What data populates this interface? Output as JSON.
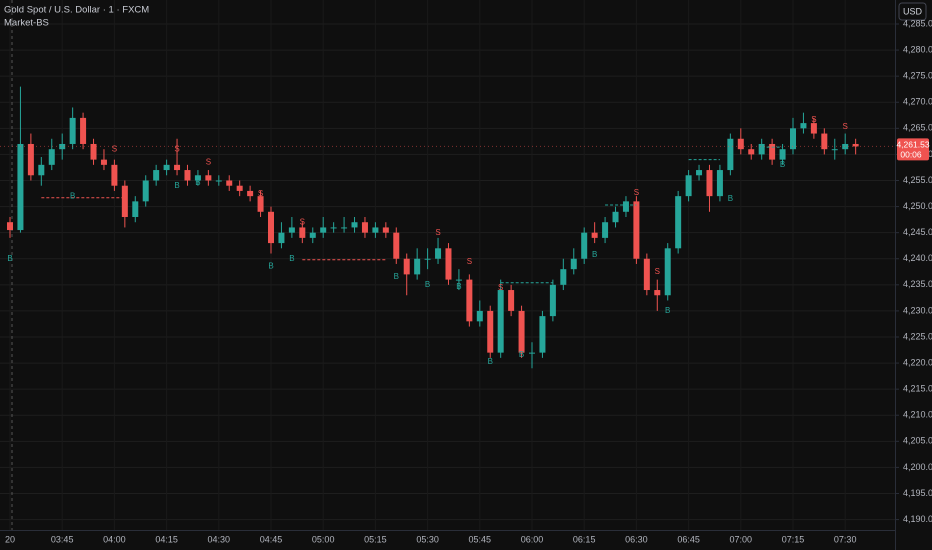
{
  "chart_data": {
    "type": "candlestick",
    "title": "Gold Spot / U.S. Dollar · 1 · FXCM",
    "indicator": "Market-BS",
    "currency": "USD",
    "countdown": "00:06",
    "last_price": {
      "value": 4261.53,
      "label": "4,261.53"
    },
    "up_color": "#26a69a",
    "down_color": "#ef5350",
    "grid": true,
    "ylim": [
      4188,
      4289.6
    ],
    "yticks": [
      {
        "value": 4190,
        "label": "4,190.00"
      },
      {
        "value": 4195,
        "label": "4,195.00"
      },
      {
        "value": 4200,
        "label": "4,200.00"
      },
      {
        "value": 4205,
        "label": "4,205.00"
      },
      {
        "value": 4210,
        "label": "4,210.00"
      },
      {
        "value": 4215,
        "label": "4,215.00"
      },
      {
        "value": 4220,
        "label": "4,220.00"
      },
      {
        "value": 4225,
        "label": "4,225.00"
      },
      {
        "value": 4230,
        "label": "4,230.00"
      },
      {
        "value": 4235,
        "label": "4,235.00"
      },
      {
        "value": 4240,
        "label": "4,240.00"
      },
      {
        "value": 4245,
        "label": "4,245.00"
      },
      {
        "value": 4250,
        "label": "4,250.00"
      },
      {
        "value": 4255,
        "label": "4,255.00"
      },
      {
        "value": 4260,
        "label": "4,260.00"
      },
      {
        "value": 4265,
        "label": "4,265.00"
      },
      {
        "value": 4270,
        "label": "4,270.00"
      },
      {
        "value": 4275,
        "label": "4,275.00"
      },
      {
        "value": 4280,
        "label": "4,280.00"
      },
      {
        "value": 4285,
        "label": "4,285.00"
      }
    ],
    "categories": [
      "20",
      null,
      null,
      null,
      null,
      "03:45",
      null,
      null,
      null,
      null,
      "04:00",
      null,
      null,
      null,
      null,
      "04:15",
      null,
      null,
      null,
      null,
      "04:30",
      null,
      null,
      null,
      null,
      "04:45",
      null,
      null,
      null,
      null,
      "05:00",
      null,
      null,
      null,
      null,
      "05:15",
      null,
      null,
      null,
      null,
      "05:30",
      null,
      null,
      null,
      null,
      "05:45",
      null,
      null,
      null,
      null,
      "06:00",
      null,
      null,
      null,
      null,
      "06:15",
      null,
      null,
      null,
      null,
      "06:30",
      null,
      null,
      null,
      null,
      "06:45",
      null,
      null,
      null,
      null,
      "07:00",
      null,
      null,
      null,
      null,
      "07:15",
      null,
      null,
      null,
      null,
      "07:30",
      null
    ],
    "open": [
      4247,
      4245.5,
      4262,
      4256,
      4258,
      4261,
      4262,
      4267,
      4262,
      4259,
      4258,
      4254,
      4248,
      4251,
      4255,
      4257,
      4258,
      4257,
      4255,
      4256,
      4255,
      4255,
      4254,
      4253,
      4252,
      4249,
      4243,
      4245,
      4246,
      4244,
      4245,
      4246,
      4246,
      4246,
      4247,
      4245,
      4246,
      4245,
      4240,
      4237,
      4240,
      4240,
      4242,
      4236,
      4236,
      4228,
      4230,
      4222,
      4234,
      4230,
      4222,
      4222,
      4229,
      4235,
      4238,
      4240,
      4245,
      4244,
      4247,
      4249,
      4251,
      4240,
      4234,
      4233,
      4242,
      4252,
      4256,
      4257,
      4252,
      4257,
      4263,
      4261,
      4260,
      4262,
      4259,
      4261,
      4265,
      4266,
      4264,
      4261,
      4261,
      4262
    ],
    "high": [
      4248,
      4273,
      4264,
      4259.5,
      4263,
      4264,
      4269,
      4268,
      4263,
      4261,
      4259,
      4255,
      4252,
      4256,
      4258,
      4259,
      4263,
      4258,
      4257,
      4257,
      4256,
      4256,
      4255,
      4254,
      4253,
      4250,
      4247,
      4248,
      4247,
      4246,
      4248,
      4247,
      4248,
      4248,
      4248,
      4247,
      4247,
      4246,
      4241,
      4242,
      4242,
      4244,
      4243,
      4238,
      4237,
      4232,
      4231,
      4236,
      4235,
      4231,
      4224,
      4230,
      4236,
      4240,
      4242,
      4246,
      4247,
      4248,
      4250,
      4252,
      4252,
      4241,
      4236,
      4243,
      4253,
      4257,
      4258,
      4258,
      4258,
      4264,
      4265,
      4262,
      4263,
      4263,
      4262,
      4267,
      4268,
      4267,
      4265,
      4263,
      4264,
      4263
    ],
    "low": [
      4244,
      4245,
      4255,
      4254,
      4257,
      4259,
      4261,
      4261,
      4258,
      4257,
      4253,
      4246,
      4247,
      4250,
      4254,
      4256,
      4256,
      4254,
      4254,
      4254,
      4254,
      4253,
      4252,
      4251,
      4248,
      4241,
      4242,
      4244,
      4243,
      4243,
      4244,
      4245,
      4245,
      4245,
      4244,
      4244,
      4244,
      4239,
      4233,
      4236,
      4238,
      4239,
      4235,
      4234,
      4227,
      4227,
      4221,
      4221,
      4229,
      4221,
      4219,
      4221,
      4228,
      4234,
      4237,
      4239,
      4243,
      4243,
      4246,
      4248,
      4239,
      4233,
      4230,
      4232,
      4241,
      4251,
      4255,
      4249,
      4251,
      4256,
      4260,
      4259,
      4259,
      4258,
      4258,
      4260,
      4264,
      4263,
      4260,
      4259,
      4260,
      4260
    ],
    "close": [
      4245.5,
      4262,
      4256,
      4258,
      4261,
      4262,
      4267,
      4262,
      4259,
      4258,
      4254,
      4248,
      4251,
      4255,
      4257,
      4258,
      4257,
      4255,
      4256,
      4255,
      4255,
      4254,
      4253,
      4252,
      4249,
      4243,
      4245,
      4246,
      4244,
      4245,
      4246,
      4246,
      4246,
      4247,
      4245,
      4246,
      4245,
      4240,
      4237,
      4240,
      4240,
      4242,
      4236,
      4236,
      4228,
      4230,
      4222,
      4234,
      4230,
      4222,
      4222,
      4229,
      4235,
      4238,
      4240,
      4245,
      4244,
      4247,
      4249,
      4251,
      4240,
      4234,
      4233,
      4242,
      4252,
      4256,
      4257,
      4252,
      4257,
      4263,
      4261,
      4260,
      4262,
      4259,
      4261,
      4265,
      4266,
      4264,
      4261,
      4261,
      4262,
      4261.53
    ],
    "signals": [
      {
        "label": "B",
        "index": 0,
        "value": 4240
      },
      {
        "label": "B",
        "index": 6,
        "value": 4252
      },
      {
        "label": "S",
        "index": 10,
        "value": 4261
      },
      {
        "label": "S",
        "index": 16,
        "value": 4261
      },
      {
        "label": "B",
        "index": 16,
        "value": 4254
      },
      {
        "label": "B",
        "index": 18,
        "value": 4254.5
      },
      {
        "label": "S",
        "index": 19,
        "value": 4258.5
      },
      {
        "label": "S",
        "index": 24,
        "value": 4252.4
      },
      {
        "label": "B",
        "index": 25,
        "value": 4238.5
      },
      {
        "label": "B",
        "index": 27,
        "value": 4240
      },
      {
        "label": "S",
        "index": 28,
        "value": 4247
      },
      {
        "label": "S",
        "index": 37,
        "value": 4243
      },
      {
        "label": "B",
        "index": 37,
        "value": 4236.5
      },
      {
        "label": "B",
        "index": 40,
        "value": 4235
      },
      {
        "label": "S",
        "index": 41,
        "value": 4245
      },
      {
        "label": "B",
        "index": 43,
        "value": 4234.6
      },
      {
        "label": "S",
        "index": 44,
        "value": 4239.4
      },
      {
        "label": "B",
        "index": 46,
        "value": 4220.2
      },
      {
        "label": "S",
        "index": 47,
        "value": 4234.4
      },
      {
        "label": "B",
        "index": 49,
        "value": 4221.6
      },
      {
        "label": "B",
        "index": 56,
        "value": 4240.7
      },
      {
        "label": "S",
        "index": 60,
        "value": 4252.6
      },
      {
        "label": "S",
        "index": 62,
        "value": 4237.5
      },
      {
        "label": "B",
        "index": 63,
        "value": 4230
      },
      {
        "label": "S",
        "index": 67,
        "value": 4255.7
      },
      {
        "label": "B",
        "index": 69,
        "value": 4251.5
      },
      {
        "label": "B",
        "index": 74,
        "value": 4258
      },
      {
        "label": "S",
        "index": 77,
        "value": 4266.6
      },
      {
        "label": "S",
        "index": 80,
        "value": 4265.3
      }
    ],
    "levels": [
      {
        "from": 3,
        "to": 11,
        "value": 4251.7,
        "color": "#ef5350"
      },
      {
        "from": 28,
        "to": 36,
        "value": 4239.8,
        "color": "#ef5350"
      },
      {
        "from": 47,
        "to": 52,
        "value": 4235.4,
        "color": "#26a69a"
      },
      {
        "from": 57,
        "to": 60,
        "value": 4250.3,
        "color": "#26a69a"
      },
      {
        "from": 65,
        "to": 68,
        "value": 4259,
        "color": "#26a69a"
      },
      {
        "from": 72,
        "to": 74,
        "value": 4261.4,
        "color": "#26a69a"
      }
    ]
  }
}
